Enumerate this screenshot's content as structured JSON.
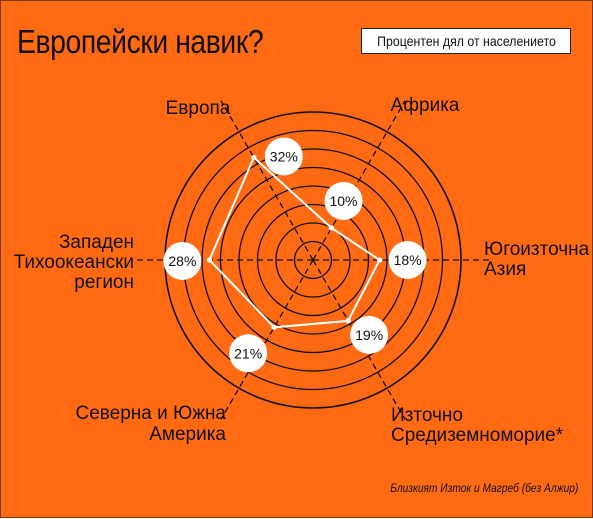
{
  "title": "Европейски навик?",
  "badge_label": "Процентен дял от населението",
  "footnote": "Близкият Изток и Магреб (без Алжир)",
  "colors": {
    "background": "#ff6a13",
    "ring": "#111111",
    "series": "#ffffff",
    "label_circle": "#ffffff"
  },
  "chart_data": {
    "type": "radar",
    "title": "Европейски навик?",
    "categories": [
      "Европа",
      "Африка",
      "Югоизточна Азия",
      "Източно Средиземноморие*",
      "Северна и Южна Америка",
      "Западен Тихоокеански регион"
    ],
    "series": [
      {
        "values": [
          32,
          10,
          18,
          19,
          21,
          28
        ],
        "value_labels": [
          "32%",
          "10%",
          "18%",
          "19%",
          "21%",
          "28%"
        ]
      }
    ],
    "rmax": 40,
    "ring_count": 8,
    "grid": true,
    "legend": "none"
  }
}
